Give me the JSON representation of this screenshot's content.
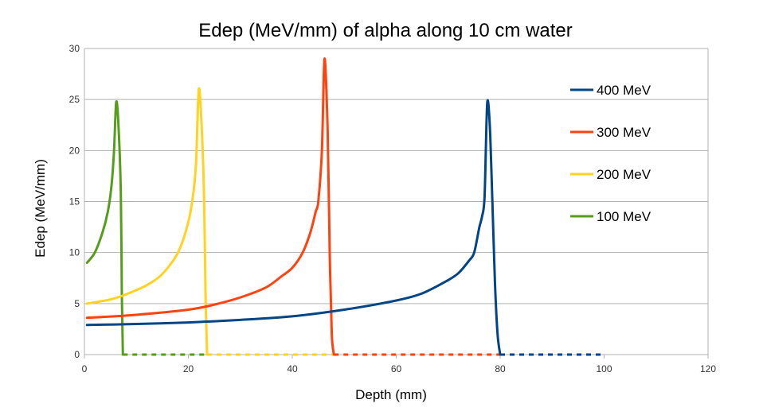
{
  "chart_data": {
    "type": "line",
    "title": "Edep (MeV/mm) of alpha along 10 cm water",
    "xlabel": "Depth (mm)",
    "ylabel": "Edep (MeV/mm)",
    "xlim": [
      0,
      120
    ],
    "ylim": [
      0,
      30
    ],
    "xticks": [
      0,
      20,
      40,
      60,
      80,
      100,
      120
    ],
    "yticks": [
      0,
      5,
      10,
      15,
      20,
      25,
      30
    ],
    "xtick_labels": [
      "0",
      "20",
      "40",
      "60",
      "80",
      "100",
      "120"
    ],
    "ytick_labels": [
      "0",
      "5",
      "10",
      "15",
      "20",
      "25",
      "30"
    ],
    "grid": "horizontal",
    "legend_position": "right",
    "series": [
      {
        "name": "400 MeV",
        "color": "#004586",
        "points": [
          [
            0.5,
            2.9
          ],
          [
            10,
            3.0
          ],
          [
            20,
            3.15
          ],
          [
            30,
            3.4
          ],
          [
            40,
            3.75
          ],
          [
            50,
            4.4
          ],
          [
            60,
            5.3
          ],
          [
            65,
            6.0
          ],
          [
            70,
            7.3
          ],
          [
            72,
            8.0
          ],
          [
            74,
            9.2
          ],
          [
            75,
            10.0
          ],
          [
            76,
            12.5
          ],
          [
            76.5,
            13.5
          ],
          [
            77,
            15.5
          ],
          [
            77.5,
            24.6
          ],
          [
            78,
            22.5
          ],
          [
            78.5,
            15.0
          ],
          [
            79,
            7.0
          ],
          [
            79.5,
            2.0
          ],
          [
            80,
            0.0
          ]
        ],
        "tail_dashed": [
          [
            80,
            0
          ],
          [
            100,
            0
          ]
        ]
      },
      {
        "name": "300 MeV",
        "color": "#ff420e",
        "points": [
          [
            0.5,
            3.6
          ],
          [
            10,
            3.9
          ],
          [
            20,
            4.4
          ],
          [
            25,
            4.9
          ],
          [
            30,
            5.6
          ],
          [
            35,
            6.6
          ],
          [
            38,
            7.7
          ],
          [
            40,
            8.5
          ],
          [
            42,
            10.0
          ],
          [
            43.5,
            12.0
          ],
          [
            44.5,
            14.0
          ],
          [
            45,
            15.0
          ],
          [
            45.7,
            20.0
          ],
          [
            46.2,
            29.0
          ],
          [
            46.8,
            22.0
          ],
          [
            47.2,
            10.0
          ],
          [
            47.6,
            2.0
          ],
          [
            48,
            0.0
          ]
        ],
        "tail_dashed": [
          [
            48,
            0
          ],
          [
            80,
            0
          ]
        ]
      },
      {
        "name": "200 MeV",
        "color": "#ffd320",
        "points": [
          [
            0.5,
            5.0
          ],
          [
            5,
            5.4
          ],
          [
            8,
            5.9
          ],
          [
            12,
            6.8
          ],
          [
            15,
            7.9
          ],
          [
            18,
            10.0
          ],
          [
            20,
            13.0
          ],
          [
            21,
            16.0
          ],
          [
            21.5,
            19.0
          ],
          [
            22,
            26.0
          ],
          [
            22.5,
            23.0
          ],
          [
            23,
            16.0
          ],
          [
            23.3,
            6.0
          ],
          [
            23.6,
            0.0
          ]
        ],
        "tail_dashed": [
          [
            23.6,
            0
          ],
          [
            48,
            0
          ]
        ]
      },
      {
        "name": "100 MeV",
        "color": "#579d1c",
        "points": [
          [
            0.5,
            9.0
          ],
          [
            2,
            10.0
          ],
          [
            3.5,
            12.0
          ],
          [
            4.5,
            14.0
          ],
          [
            5.2,
            16.5
          ],
          [
            5.7,
            20.0
          ],
          [
            6.1,
            24.7
          ],
          [
            6.5,
            23.0
          ],
          [
            7,
            16.0
          ],
          [
            7.2,
            6.0
          ],
          [
            7.4,
            0.0
          ]
        ],
        "tail_dashed": [
          [
            7.4,
            0
          ],
          [
            23.6,
            0
          ]
        ]
      }
    ]
  }
}
